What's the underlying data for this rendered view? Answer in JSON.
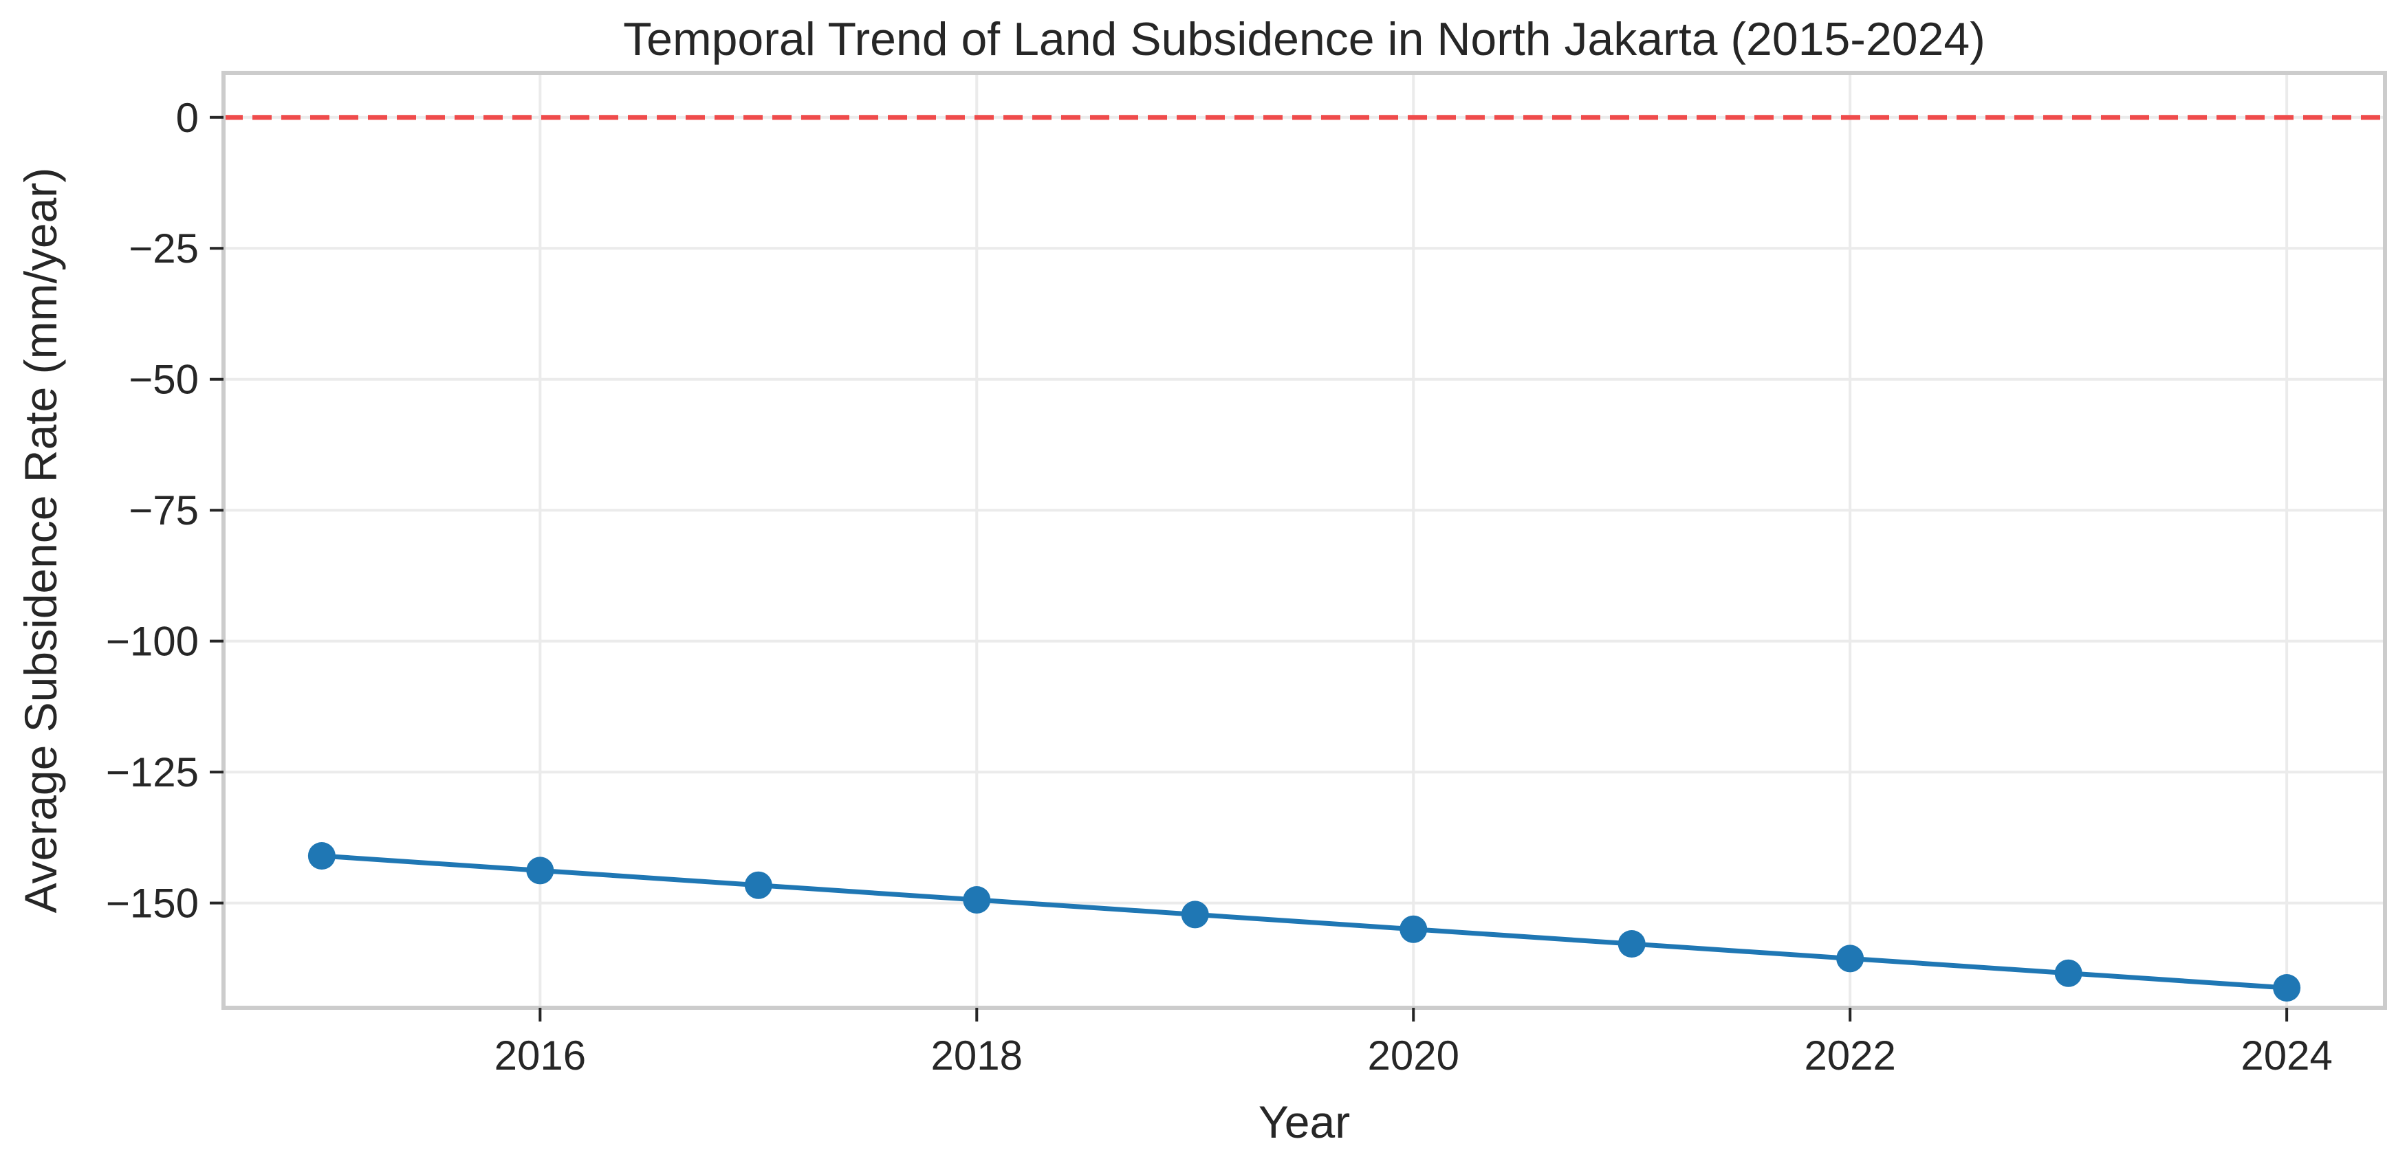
{
  "chart_data": {
    "type": "line",
    "title": "Temporal Trend of Land Subsidence in North Jakarta (2015-2024)",
    "xlabel": "Year",
    "ylabel": "Average Subsidence Rate (mm/year)",
    "xlim": [
      2014.55,
      2024.45
    ],
    "ylim": [
      -170,
      8.5
    ],
    "x_ticks": [
      2016,
      2018,
      2020,
      2022,
      2024
    ],
    "y_ticks": [
      0,
      -25,
      -50,
      -75,
      -100,
      -125,
      -150
    ],
    "x_tick_labels": [
      "2016",
      "2018",
      "2020",
      "2022",
      "2024"
    ],
    "y_tick_labels": [
      "0",
      "−25",
      "−50",
      "−75",
      "−100",
      "−125",
      "−150"
    ],
    "grid": true,
    "series": [
      {
        "color": "#1f77b4",
        "marker": "circle",
        "x": [
          2015,
          2016,
          2017,
          2018,
          2019,
          2020,
          2021,
          2022,
          2023,
          2024
        ],
        "y": [
          -141,
          -143.8,
          -146.6,
          -149.4,
          -152.2,
          -155,
          -157.8,
          -160.6,
          -163.4,
          -166.2
        ]
      }
    ],
    "reference_line": {
      "y": 0,
      "style": "dashed",
      "color": "#ef4b4b"
    }
  }
}
